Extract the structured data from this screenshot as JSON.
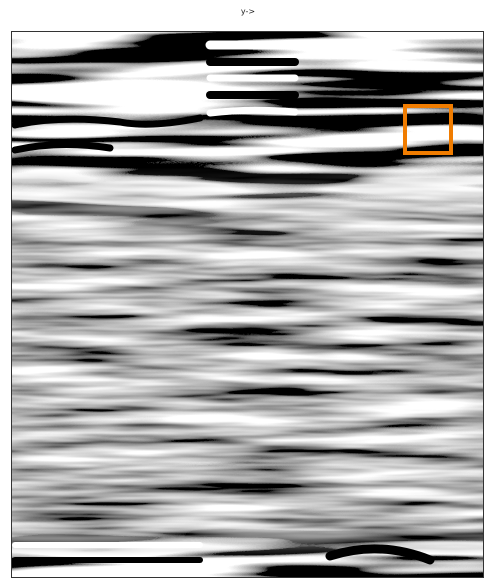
{
  "title": "y->"
}
